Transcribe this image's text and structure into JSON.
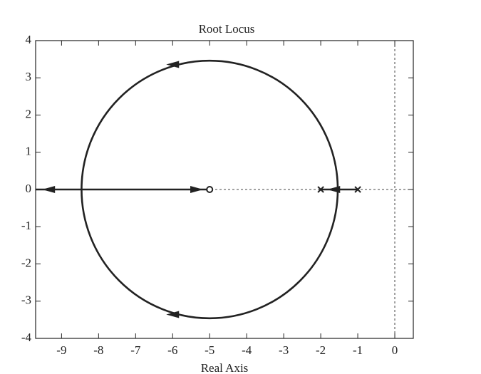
{
  "chart_data": {
    "type": "root-locus",
    "title": "Root Locus",
    "x_label": "Real Axis",
    "xlim": [
      -9.7,
      0.5
    ],
    "ylim": [
      -4,
      4
    ],
    "xticks": [
      -9,
      -8,
      -7,
      -6,
      -5,
      -4,
      -3,
      -2,
      -1,
      0
    ],
    "yticks": [
      -4,
      -3,
      -2,
      -1,
      0,
      1,
      2,
      3,
      4
    ],
    "poles": {
      "x": [
        -2,
        -1
      ],
      "y": [
        0,
        0
      ]
    },
    "zeros": {
      "x": [
        -5
      ],
      "y": [
        0
      ]
    },
    "circle": {
      "center": [
        -5,
        0
      ],
      "radius": 3.46
    },
    "branches": [
      {
        "x": [
          -5,
          -9.7
        ],
        "y": [
          0,
          0
        ]
      },
      {
        "x": [
          -2,
          -1
        ],
        "y": [
          0,
          0
        ]
      }
    ],
    "arrows": [
      {
        "x": -6.0,
        "y": 3.36,
        "dir": "left"
      },
      {
        "x": -6.0,
        "y": -3.36,
        "dir": "left"
      },
      {
        "x": -5.35,
        "y": 0,
        "dir": "right"
      },
      {
        "x": -9.35,
        "y": 0,
        "dir": "left"
      },
      {
        "x": -1.65,
        "y": 0,
        "dir": "left"
      }
    ],
    "color": "#222222"
  }
}
